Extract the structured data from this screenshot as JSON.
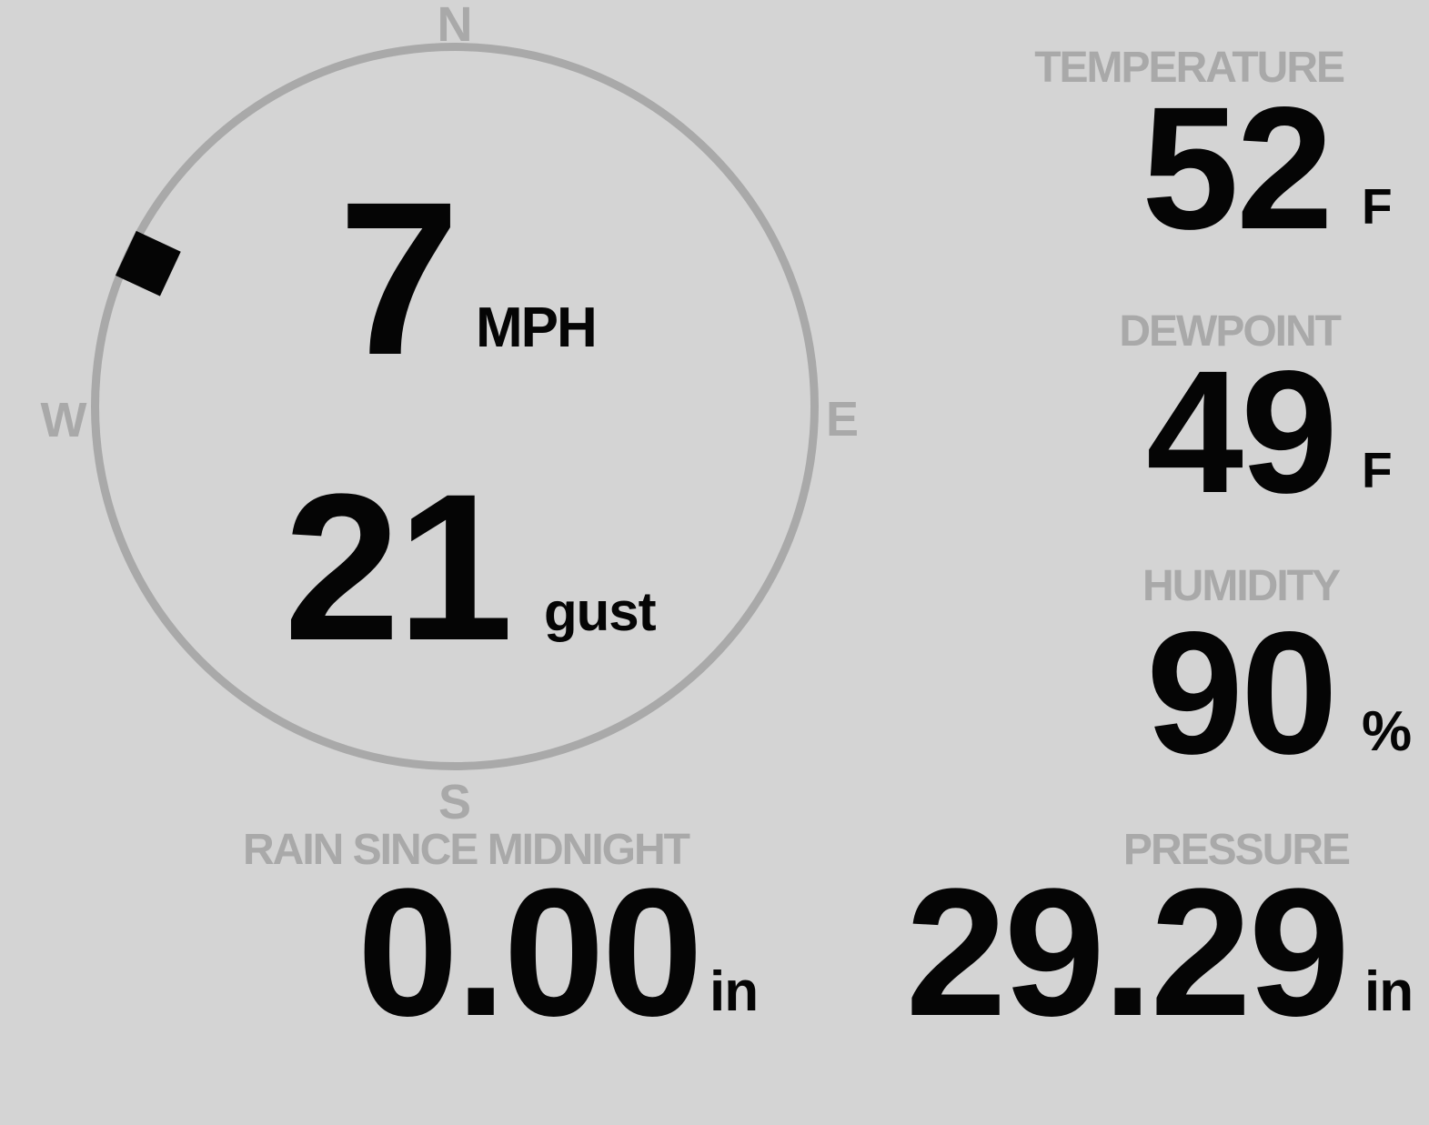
{
  "colors": {
    "background": "#d4d4d4",
    "muted_gray": "#a9a9a9",
    "ink_black": "#050505"
  },
  "wind": {
    "compass": {
      "north": "N",
      "east": "E",
      "south": "S",
      "west": "W",
      "direction_deg": 295
    },
    "speed": {
      "value": "7",
      "unit": "MPH"
    },
    "gust": {
      "value": "21",
      "unit": "gust"
    }
  },
  "metrics": {
    "temperature": {
      "label": "TEMPERATURE",
      "value": "52",
      "unit": "F"
    },
    "dewpoint": {
      "label": "DEWPOINT",
      "value": "49",
      "unit": "F"
    },
    "humidity": {
      "label": "HUMIDITY",
      "value": "90",
      "unit": "%"
    },
    "rain": {
      "label": "RAIN SINCE MIDNIGHT",
      "value": "0.00",
      "unit": "in"
    },
    "pressure": {
      "label": "PRESSURE",
      "value": "29.29",
      "unit": "in"
    }
  }
}
